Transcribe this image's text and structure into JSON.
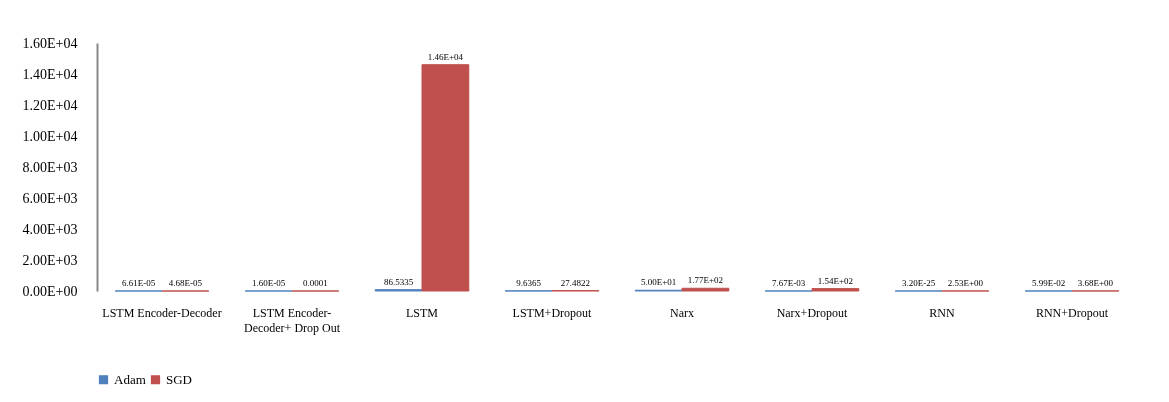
{
  "chart_data": {
    "type": "bar",
    "categories": [
      "LSTM Encoder-Decoder",
      "LSTM Encoder-Decoder+ Drop Out",
      "LSTM",
      "LSTM+Dropout",
      "Narx",
      "Narx+Dropout",
      "RNN",
      "RNN+Dropout"
    ],
    "series": [
      {
        "name": "Adam",
        "color": "#4f81bd",
        "values": [
          6.61e-05,
          1.6e-05,
          86.5335,
          9.6365,
          50,
          0.00767,
          3.2e-25,
          0.0599
        ],
        "value_labels": [
          "6.61E-05",
          "1.60E-05",
          "86.5335",
          "9.6365",
          "5.00E+01",
          "7.67E-03",
          "3.20E-25",
          "5.99E-02"
        ]
      },
      {
        "name": "SGD",
        "color": "#c0504d",
        "values": [
          4.68e-05,
          0.0001,
          14600,
          27.4822,
          177,
          154,
          2.53,
          3.68
        ],
        "value_labels": [
          "4.68E-05",
          "0.0001",
          "1.46E+04",
          "27.4822",
          "1.77E+02",
          "1.54E+02",
          "2.53E+00",
          "3.68E+00"
        ]
      }
    ],
    "ylim": [
      0,
      16000
    ],
    "yticks": [
      {
        "value": 0,
        "label": "0.00E+00"
      },
      {
        "value": 2000,
        "label": "2.00E+03"
      },
      {
        "value": 4000,
        "label": "4.00E+03"
      },
      {
        "value": 6000,
        "label": "6.00E+03"
      },
      {
        "value": 8000,
        "label": "8.00E+03"
      },
      {
        "value": 10000,
        "label": "1.00E+04"
      },
      {
        "value": 12000,
        "label": "1.20E+04"
      },
      {
        "value": 14000,
        "label": "1.40E+04"
      },
      {
        "value": 16000,
        "label": "1.60E+04"
      }
    ],
    "grid": false,
    "legend": "bottom"
  }
}
